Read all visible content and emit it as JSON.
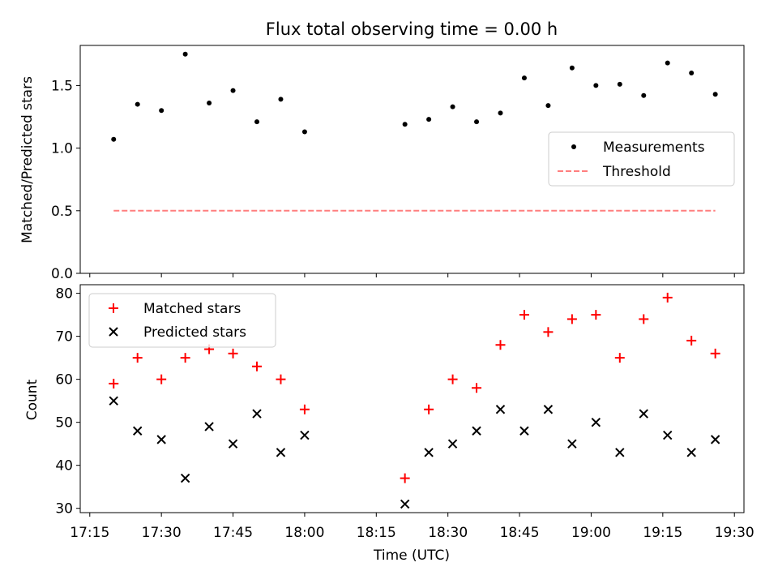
{
  "title": "Flux total observing time = 0.00 h",
  "chart_data": [
    {
      "type": "scatter",
      "ylabel": "Matched/Predicted stars",
      "xlabel": "",
      "ylim": [
        0,
        1.82
      ],
      "yticks": [
        0.0,
        0.5,
        1.0,
        1.5
      ],
      "ytick_labels": [
        "0.0",
        "0.5",
        "1.0",
        "1.5"
      ],
      "xtick_labels_shown": false,
      "grid": false,
      "legend_position": "center-right",
      "series": [
        {
          "name": "Measurements",
          "kind": "scatter",
          "marker": "dot",
          "color": "#000000",
          "points": [
            [
              "17:20",
              1.07
            ],
            [
              "17:25",
              1.35
            ],
            [
              "17:30",
              1.3
            ],
            [
              "17:35",
              1.75
            ],
            [
              "17:40",
              1.36
            ],
            [
              "17:45",
              1.46
            ],
            [
              "17:50",
              1.21
            ],
            [
              "17:55",
              1.39
            ],
            [
              "18:00",
              1.13
            ],
            [
              "18:21",
              1.19
            ],
            [
              "18:26",
              1.23
            ],
            [
              "18:31",
              1.33
            ],
            [
              "18:36",
              1.21
            ],
            [
              "18:41",
              1.28
            ],
            [
              "18:46",
              1.56
            ],
            [
              "18:51",
              1.34
            ],
            [
              "18:56",
              1.64
            ],
            [
              "19:01",
              1.5
            ],
            [
              "19:06",
              1.51
            ],
            [
              "19:11",
              1.42
            ],
            [
              "19:16",
              1.68
            ],
            [
              "19:21",
              1.6
            ],
            [
              "19:26",
              1.43
            ]
          ]
        },
        {
          "name": "Threshold",
          "kind": "line",
          "style": "dashed",
          "color": "#ff7f7f",
          "points": [
            [
              "17:20",
              0.5
            ],
            [
              "19:26",
              0.5
            ]
          ]
        }
      ]
    },
    {
      "type": "scatter",
      "ylabel": "Count",
      "xlabel": "Time (UTC)",
      "ylim": [
        29,
        82
      ],
      "yticks": [
        30,
        40,
        50,
        60,
        70,
        80
      ],
      "ytick_labels": [
        "30",
        "40",
        "50",
        "60",
        "70",
        "80"
      ],
      "xlim": [
        "17:13",
        "19:32"
      ],
      "xticks": [
        "17:15",
        "17:30",
        "17:45",
        "18:00",
        "18:15",
        "18:30",
        "18:45",
        "19:00",
        "19:15",
        "19:30"
      ],
      "grid": false,
      "legend_position": "upper-left",
      "series": [
        {
          "name": "Matched stars",
          "kind": "scatter",
          "marker": "plus",
          "color": "#ff0000",
          "points": [
            [
              "17:20",
              59
            ],
            [
              "17:25",
              65
            ],
            [
              "17:30",
              60
            ],
            [
              "17:35",
              65
            ],
            [
              "17:40",
              67
            ],
            [
              "17:45",
              66
            ],
            [
              "17:50",
              63
            ],
            [
              "17:55",
              60
            ],
            [
              "18:00",
              53
            ],
            [
              "18:21",
              37
            ],
            [
              "18:26",
              53
            ],
            [
              "18:31",
              60
            ],
            [
              "18:36",
              58
            ],
            [
              "18:41",
              68
            ],
            [
              "18:46",
              75
            ],
            [
              "18:51",
              71
            ],
            [
              "18:56",
              74
            ],
            [
              "19:01",
              75
            ],
            [
              "19:06",
              65
            ],
            [
              "19:11",
              74
            ],
            [
              "19:16",
              79
            ],
            [
              "19:21",
              69
            ],
            [
              "19:26",
              66
            ]
          ]
        },
        {
          "name": "Predicted stars",
          "kind": "scatter",
          "marker": "x",
          "color": "#000000",
          "points": [
            [
              "17:20",
              55
            ],
            [
              "17:25",
              48
            ],
            [
              "17:30",
              46
            ],
            [
              "17:35",
              37
            ],
            [
              "17:40",
              49
            ],
            [
              "17:45",
              45
            ],
            [
              "17:50",
              52
            ],
            [
              "17:55",
              43
            ],
            [
              "18:00",
              47
            ],
            [
              "18:21",
              31
            ],
            [
              "18:26",
              43
            ],
            [
              "18:31",
              45
            ],
            [
              "18:36",
              48
            ],
            [
              "18:41",
              53
            ],
            [
              "18:46",
              48
            ],
            [
              "18:51",
              53
            ],
            [
              "18:56",
              45
            ],
            [
              "19:01",
              50
            ],
            [
              "19:06",
              43
            ],
            [
              "19:11",
              52
            ],
            [
              "19:16",
              47
            ],
            [
              "19:21",
              43
            ],
            [
              "19:26",
              46
            ]
          ]
        }
      ]
    }
  ]
}
